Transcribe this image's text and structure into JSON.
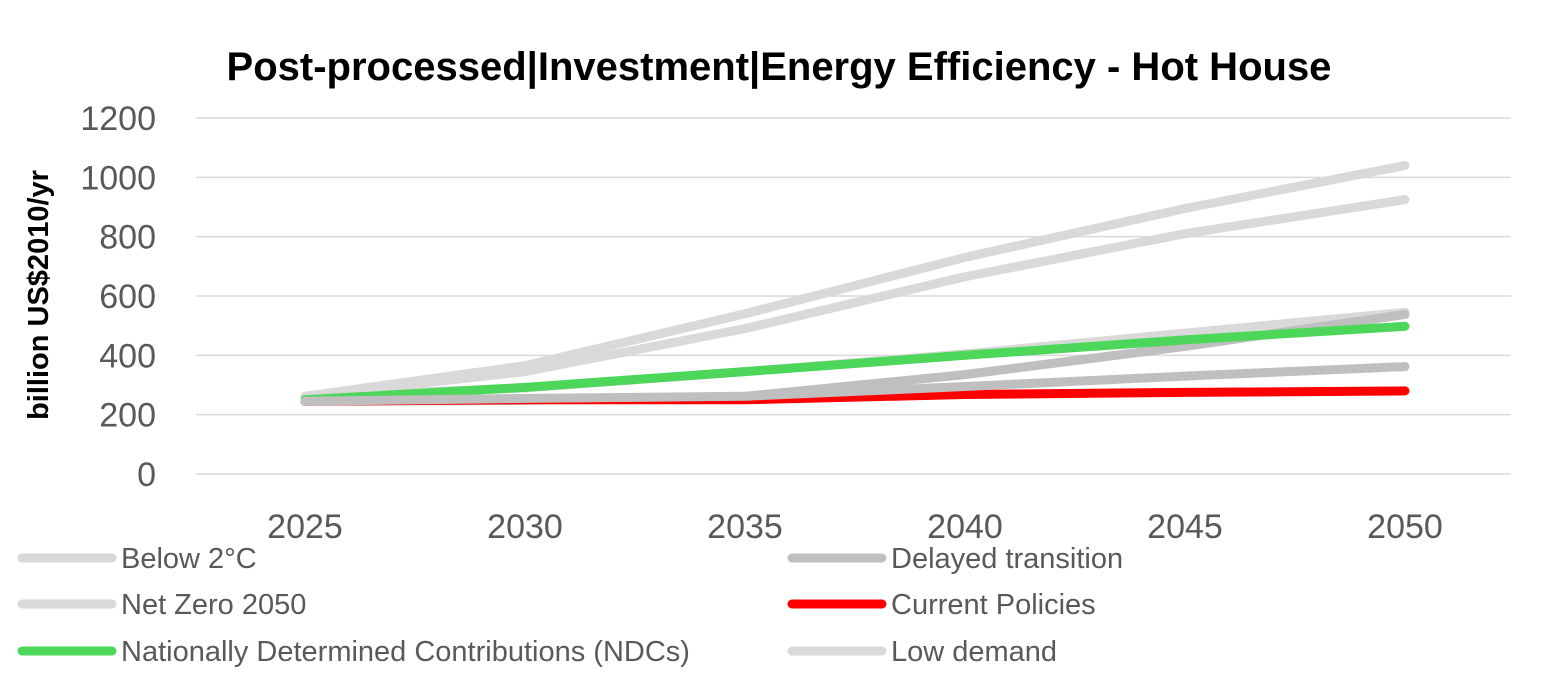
{
  "chart_data": {
    "type": "line",
    "title": "Post-processed|Investment|Energy Efficiency - Hot House",
    "xlabel": "",
    "ylabel": "billion US$2010/yr",
    "x": [
      2025,
      2030,
      2035,
      2040,
      2045,
      2050
    ],
    "ylim": [
      0,
      1200
    ],
    "yticks": [
      0,
      200,
      400,
      600,
      800,
      1000,
      1200
    ],
    "grid": true,
    "legend_position": "bottom",
    "series": [
      {
        "name": "Below 2°C",
        "color": "#d9d9d9",
        "values": [
          262,
          345,
          490,
          665,
          810,
          925
        ]
      },
      {
        "name": "Net Zero 2050",
        "color": "#d9d9d9",
        "values": [
          262,
          365,
          540,
          730,
          895,
          1040
        ]
      },
      {
        "name": "Low demand",
        "color": "#d9d9d9",
        "values": [
          262,
          290,
          345,
          405,
          475,
          545
        ]
      },
      {
        "name": "Delayed transition",
        "color": "#bfbfbf",
        "values": [
          245,
          248,
          262,
          335,
          430,
          538
        ]
      },
      {
        "name": "Current Policies",
        "color": "#ff0000",
        "values": [
          245,
          250,
          250,
          268,
          275,
          280
        ]
      },
      {
        "name": "Nationally Determined Contributions (NDCs)",
        "color": "#4cd65a",
        "values": [
          250,
          292,
          345,
          400,
          452,
          498
        ]
      },
      {
        "name": "",
        "color": "#bfbfbf",
        "values": [
          245,
          255,
          262,
          295,
          330,
          362
        ]
      }
    ],
    "legend": [
      {
        "name": "Below 2°C",
        "color": "#d9d9d9"
      },
      {
        "name": "Delayed transition",
        "color": "#bfbfbf"
      },
      {
        "name": "Net Zero 2050",
        "color": "#d9d9d9"
      },
      {
        "name": "Current Policies",
        "color": "#ff0000"
      },
      {
        "name": "Nationally Determined Contributions (NDCs)",
        "color": "#4cd65a"
      },
      {
        "name": "Low demand",
        "color": "#d9d9d9"
      }
    ]
  }
}
